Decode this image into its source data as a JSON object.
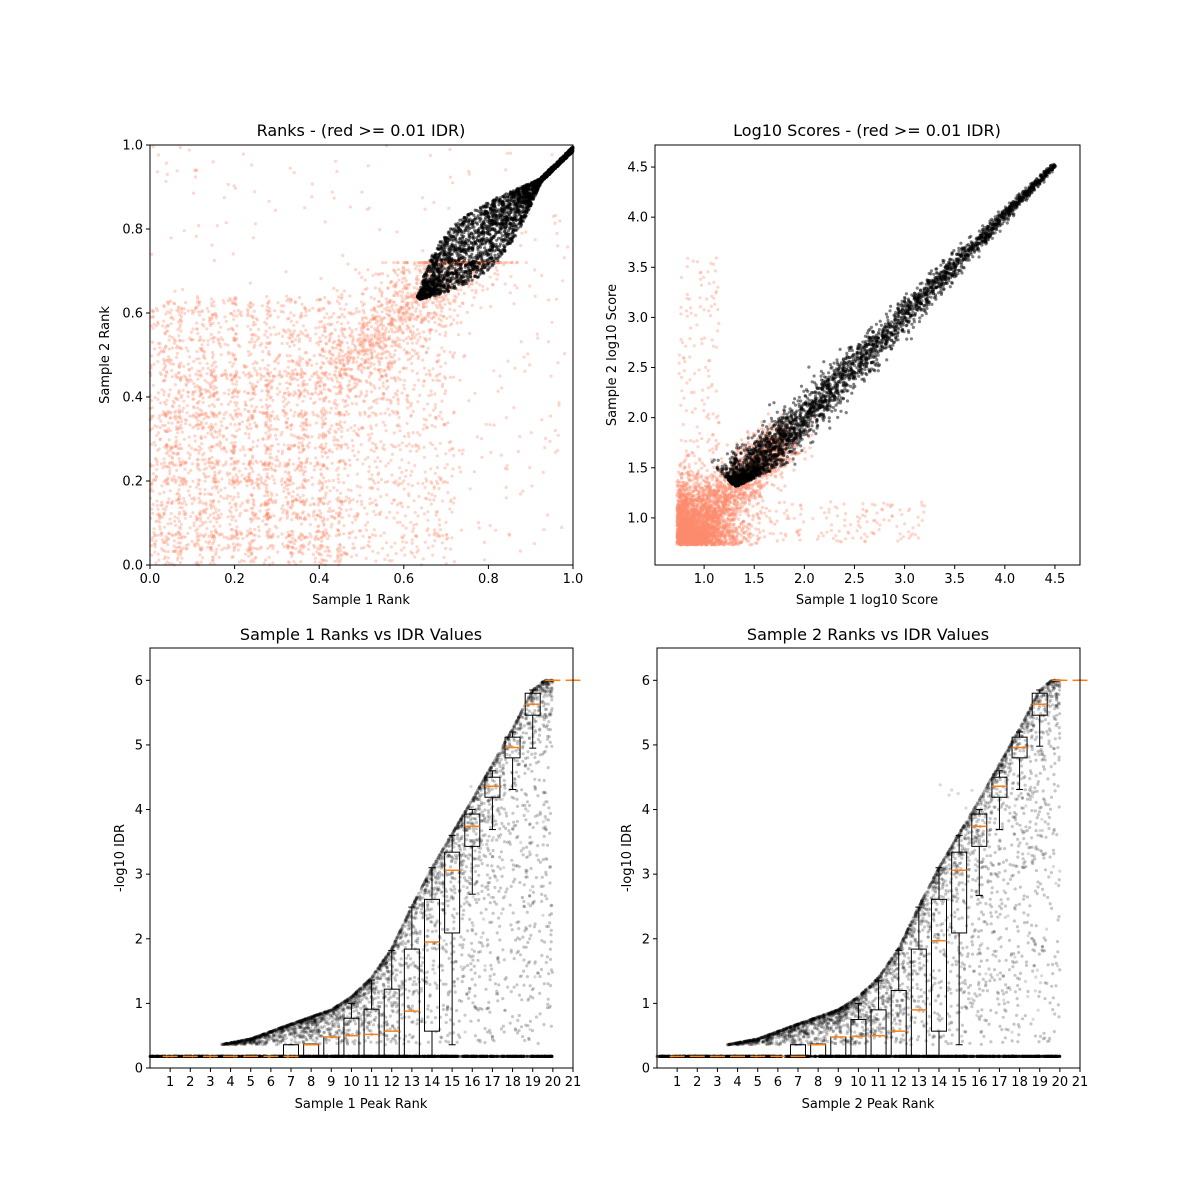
{
  "colors": {
    "pass": "#000000",
    "fail": "#fc8d6e",
    "median": "#ff7f0e"
  },
  "chart_data": [
    {
      "type": "scatter",
      "title": "Ranks - (red >= 0.01 IDR)",
      "xlabel": "Sample 1 Rank",
      "ylabel": "Sample 2 Rank",
      "xlim": [
        0,
        1
      ],
      "ylim": [
        0,
        1
      ],
      "xticks": [
        "0.0",
        "0.2",
        "0.4",
        "0.6",
        "0.8",
        "1.0"
      ],
      "yticks": [
        "0.0",
        "0.2",
        "0.4",
        "0.6",
        "0.8",
        "1.0"
      ],
      "xtick_values": [
        0,
        0.2,
        0.4,
        0.6,
        0.8,
        1.0
      ],
      "ytick_values": [
        0,
        0.2,
        0.4,
        0.6,
        0.8,
        1.0
      ],
      "series": [
        {
          "name": "IDR >= 0.01",
          "color": "red",
          "region": "x 0-0.8, y 0-0.65, plus sparse across square"
        },
        {
          "name": "IDR < 0.01",
          "color": "black",
          "region": "diagonal band from (0.63,0.64) to (1,1)"
        }
      ]
    },
    {
      "type": "scatter",
      "title": "Log10 Scores - (red >= 0.01 IDR)",
      "xlabel": "Sample 1 log10 Score",
      "ylabel": "Sample 2 log10 Score",
      "xlim": [
        0.51,
        4.75
      ],
      "ylim": [
        0.53,
        4.72
      ],
      "xticks": [
        "1.0",
        "1.5",
        "2.0",
        "2.5",
        "3.0",
        "3.5",
        "4.0",
        "4.5"
      ],
      "yticks": [
        "1.0",
        "1.5",
        "2.0",
        "2.5",
        "3.0",
        "3.5",
        "4.0",
        "4.5"
      ],
      "xtick_values": [
        1.0,
        1.5,
        2.0,
        2.5,
        3.0,
        3.5,
        4.0,
        4.5
      ],
      "ytick_values": [
        1.0,
        1.5,
        2.0,
        2.5,
        3.0,
        3.5,
        4.0,
        4.5
      ],
      "series": [
        {
          "name": "IDR >= 0.01",
          "color": "red",
          "region": "cluster 0.73-1.8 both axes"
        },
        {
          "name": "IDR < 0.01",
          "color": "black",
          "region": "diagonal band from (1.25,1.28) to (4.5,4.5)"
        }
      ]
    },
    {
      "type": "box+scatter",
      "title": "Sample 1 Ranks vs IDR Values",
      "xlabel": "Sample 1 Peak Rank",
      "ylabel": "-log10 IDR",
      "xlim": [
        0,
        21
      ],
      "ylim": [
        0,
        6.5
      ],
      "xticks": [
        "1",
        "2",
        "3",
        "4",
        "5",
        "6",
        "7",
        "8",
        "9",
        "10",
        "11",
        "12",
        "13",
        "14",
        "15",
        "16",
        "17",
        "18",
        "19",
        "20",
        "21"
      ],
      "yticks": [
        "0",
        "1",
        "2",
        "3",
        "4",
        "5",
        "6"
      ],
      "ytick_values": [
        0,
        1,
        2,
        3,
        4,
        5,
        6
      ],
      "boxes": [
        {
          "x": 1,
          "med": 0.18,
          "q1": 0.18,
          "q3": 0.18,
          "lo": 0.18,
          "hi": 0.18
        },
        {
          "x": 2,
          "med": 0.18,
          "q1": 0.18,
          "q3": 0.18,
          "lo": 0.18,
          "hi": 0.18
        },
        {
          "x": 3,
          "med": 0.18,
          "q1": 0.18,
          "q3": 0.18,
          "lo": 0.18,
          "hi": 0.18
        },
        {
          "x": 4,
          "med": 0.18,
          "q1": 0.18,
          "q3": 0.18,
          "lo": 0.18,
          "hi": 0.18
        },
        {
          "x": 5,
          "med": 0.18,
          "q1": 0.18,
          "q3": 0.18,
          "lo": 0.18,
          "hi": 0.18
        },
        {
          "x": 6,
          "med": 0.18,
          "q1": 0.18,
          "q3": 0.18,
          "lo": 0.18,
          "hi": 0.18
        },
        {
          "x": 7,
          "med": 0.18,
          "q1": 0.18,
          "q3": 0.36,
          "lo": 0.18,
          "hi": 0.36
        },
        {
          "x": 8,
          "med": 0.36,
          "q1": 0.18,
          "q3": 0.37,
          "lo": 0.18,
          "hi": 0.37
        },
        {
          "x": 9,
          "med": 0.48,
          "q1": 0.18,
          "q3": 0.48,
          "lo": 0.18,
          "hi": 0.48
        },
        {
          "x": 10,
          "med": 0.5,
          "q1": 0.18,
          "q3": 0.77,
          "lo": 0.18,
          "hi": 1.0
        },
        {
          "x": 11,
          "med": 0.52,
          "q1": 0.18,
          "q3": 0.91,
          "lo": 0.18,
          "hi": 1.36
        },
        {
          "x": 12,
          "med": 0.57,
          "q1": 0.18,
          "q3": 1.22,
          "lo": 0.18,
          "hi": 1.82
        },
        {
          "x": 13,
          "med": 0.88,
          "q1": 0.18,
          "q3": 1.84,
          "lo": 0.18,
          "hi": 2.49
        },
        {
          "x": 14,
          "med": 1.95,
          "q1": 0.57,
          "q3": 2.61,
          "lo": 0.18,
          "hi": 3.1
        },
        {
          "x": 15,
          "med": 3.06,
          "q1": 2.09,
          "q3": 3.34,
          "lo": 0.36,
          "hi": 3.6
        },
        {
          "x": 16,
          "med": 3.74,
          "q1": 3.43,
          "q3": 3.93,
          "lo": 2.69,
          "hi": 4.0
        },
        {
          "x": 17,
          "med": 4.36,
          "q1": 4.19,
          "q3": 4.5,
          "lo": 3.69,
          "hi": 4.6
        },
        {
          "x": 18,
          "med": 4.96,
          "q1": 4.8,
          "q3": 5.12,
          "lo": 4.31,
          "hi": 5.2
        },
        {
          "x": 19,
          "med": 5.63,
          "q1": 5.46,
          "q3": 5.8,
          "lo": 4.95,
          "hi": 5.85
        },
        {
          "x": 20,
          "med": 6.0,
          "q1": 6.0,
          "q3": 6.0,
          "lo": 6.0,
          "hi": 6.0
        },
        {
          "x": 21,
          "med": 6.0,
          "q1": 6.0,
          "q3": 6.0,
          "lo": 6.0,
          "hi": 6.0
        }
      ]
    },
    {
      "type": "box+scatter",
      "title": "Sample 2 Ranks vs IDR Values",
      "xlabel": "Sample 2 Peak Rank",
      "ylabel": "-log10 IDR",
      "xlim": [
        0,
        21
      ],
      "ylim": [
        0,
        6.5
      ],
      "xticks": [
        "1",
        "2",
        "3",
        "4",
        "5",
        "6",
        "7",
        "8",
        "9",
        "10",
        "11",
        "12",
        "13",
        "14",
        "15",
        "16",
        "17",
        "18",
        "19",
        "20",
        "21"
      ],
      "yticks": [
        "0",
        "1",
        "2",
        "3",
        "4",
        "5",
        "6"
      ],
      "ytick_values": [
        0,
        1,
        2,
        3,
        4,
        5,
        6
      ],
      "boxes": [
        {
          "x": 1,
          "med": 0.18,
          "q1": 0.18,
          "q3": 0.18,
          "lo": 0.18,
          "hi": 0.18
        },
        {
          "x": 2,
          "med": 0.18,
          "q1": 0.18,
          "q3": 0.18,
          "lo": 0.18,
          "hi": 0.18
        },
        {
          "x": 3,
          "med": 0.18,
          "q1": 0.18,
          "q3": 0.18,
          "lo": 0.18,
          "hi": 0.18
        },
        {
          "x": 4,
          "med": 0.18,
          "q1": 0.18,
          "q3": 0.18,
          "lo": 0.18,
          "hi": 0.18
        },
        {
          "x": 5,
          "med": 0.18,
          "q1": 0.18,
          "q3": 0.18,
          "lo": 0.18,
          "hi": 0.18
        },
        {
          "x": 6,
          "med": 0.18,
          "q1": 0.18,
          "q3": 0.18,
          "lo": 0.18,
          "hi": 0.18
        },
        {
          "x": 7,
          "med": 0.18,
          "q1": 0.18,
          "q3": 0.36,
          "lo": 0.18,
          "hi": 0.36
        },
        {
          "x": 8,
          "med": 0.36,
          "q1": 0.18,
          "q3": 0.37,
          "lo": 0.18,
          "hi": 0.37
        },
        {
          "x": 9,
          "med": 0.48,
          "q1": 0.18,
          "q3": 0.48,
          "lo": 0.18,
          "hi": 0.48
        },
        {
          "x": 10,
          "med": 0.49,
          "q1": 0.18,
          "q3": 0.75,
          "lo": 0.18,
          "hi": 1.0
        },
        {
          "x": 11,
          "med": 0.5,
          "q1": 0.18,
          "q3": 0.9,
          "lo": 0.18,
          "hi": 1.35
        },
        {
          "x": 12,
          "med": 0.57,
          "q1": 0.18,
          "q3": 1.2,
          "lo": 0.18,
          "hi": 1.82
        },
        {
          "x": 13,
          "med": 0.9,
          "q1": 0.18,
          "q3": 1.84,
          "lo": 0.18,
          "hi": 2.49
        },
        {
          "x": 14,
          "med": 1.97,
          "q1": 0.57,
          "q3": 2.61,
          "lo": 0.18,
          "hi": 3.1
        },
        {
          "x": 15,
          "med": 3.06,
          "q1": 2.09,
          "q3": 3.34,
          "lo": 0.36,
          "hi": 3.6
        },
        {
          "x": 16,
          "med": 3.74,
          "q1": 3.43,
          "q3": 3.93,
          "lo": 2.67,
          "hi": 4.0
        },
        {
          "x": 17,
          "med": 4.36,
          "q1": 4.19,
          "q3": 4.5,
          "lo": 3.69,
          "hi": 4.6
        },
        {
          "x": 18,
          "med": 4.96,
          "q1": 4.8,
          "q3": 5.12,
          "lo": 4.31,
          "hi": 5.2
        },
        {
          "x": 19,
          "med": 5.63,
          "q1": 5.46,
          "q3": 5.8,
          "lo": 4.98,
          "hi": 5.85
        },
        {
          "x": 20,
          "med": 6.0,
          "q1": 6.0,
          "q3": 6.0,
          "lo": 6.0,
          "hi": 6.0
        },
        {
          "x": 21,
          "med": 6.0,
          "q1": 6.0,
          "q3": 6.0,
          "lo": 6.0,
          "hi": 6.0
        }
      ]
    }
  ]
}
